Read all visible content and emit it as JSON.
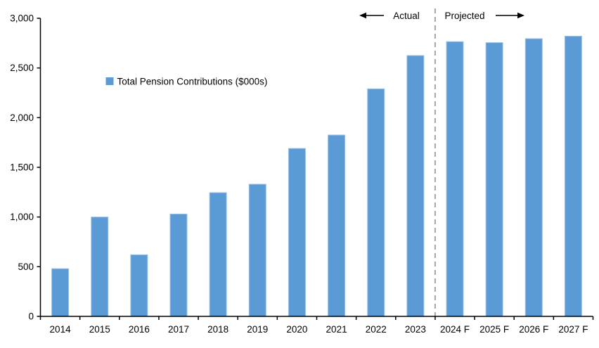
{
  "chart_data": {
    "type": "bar",
    "categories": [
      "2014",
      "2015",
      "2016",
      "2017",
      "2018",
      "2019",
      "2020",
      "2021",
      "2022",
      "2023",
      "2024 F",
      "2025 F",
      "2026 F",
      "2027 F"
    ],
    "series": [
      {
        "name": "Total Pension Contributions ($000s)",
        "values": [
          480,
          1000,
          620,
          1030,
          1245,
          1330,
          1690,
          1825,
          2290,
          2625,
          2765,
          2755,
          2795,
          2820
        ]
      }
    ],
    "title": "",
    "xlabel": "",
    "ylabel": "",
    "ylim": [
      0,
      3000
    ],
    "ytick_interval": 500,
    "ytick_labels": [
      "0",
      "500",
      "1,000",
      "1,500",
      "2,000",
      "2,500",
      "3,000"
    ],
    "grid": false,
    "legend": {
      "label": "Total Pension Contributions ($000s)",
      "position": "inside-upper-left",
      "marker_color": "#5B9BD5"
    },
    "annotations": {
      "actual_label": "Actual",
      "projected_label": "Projected",
      "divider_after_index": 9,
      "divider_style": "dashed"
    },
    "colors": {
      "bar": "#5B9BD5",
      "bar_highlight": "#9DC3E6",
      "divider": "#A6A6A6",
      "axis": "#000000",
      "text": "#000000",
      "background": "#FFFFFF"
    }
  }
}
